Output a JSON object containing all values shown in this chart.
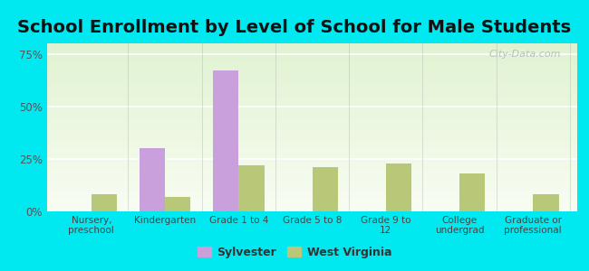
{
  "title": "School Enrollment by Level of School for Male Students",
  "categories": [
    "Nursery,\npreschool",
    "Kindergarten",
    "Grade 1 to 4",
    "Grade 5 to 8",
    "Grade 9 to\n12",
    "College\nundergrad",
    "Graduate or\nprofessional"
  ],
  "sylvester": [
    0,
    30,
    67,
    0,
    0,
    0,
    0
  ],
  "west_virginia": [
    8,
    7,
    22,
    21,
    23,
    18,
    8
  ],
  "sylvester_color": "#c9a0dc",
  "west_virginia_color": "#b8c878",
  "bar_width": 0.35,
  "ylim": [
    0,
    80
  ],
  "yticks": [
    0,
    25,
    50,
    75
  ],
  "ytick_labels": [
    "0%",
    "25%",
    "50%",
    "75%"
  ],
  "background_color": "#00e8f0",
  "title_fontsize": 14,
  "legend_sylvester": "Sylvester",
  "legend_wv": "West Virginia",
  "title_color": "#111111"
}
